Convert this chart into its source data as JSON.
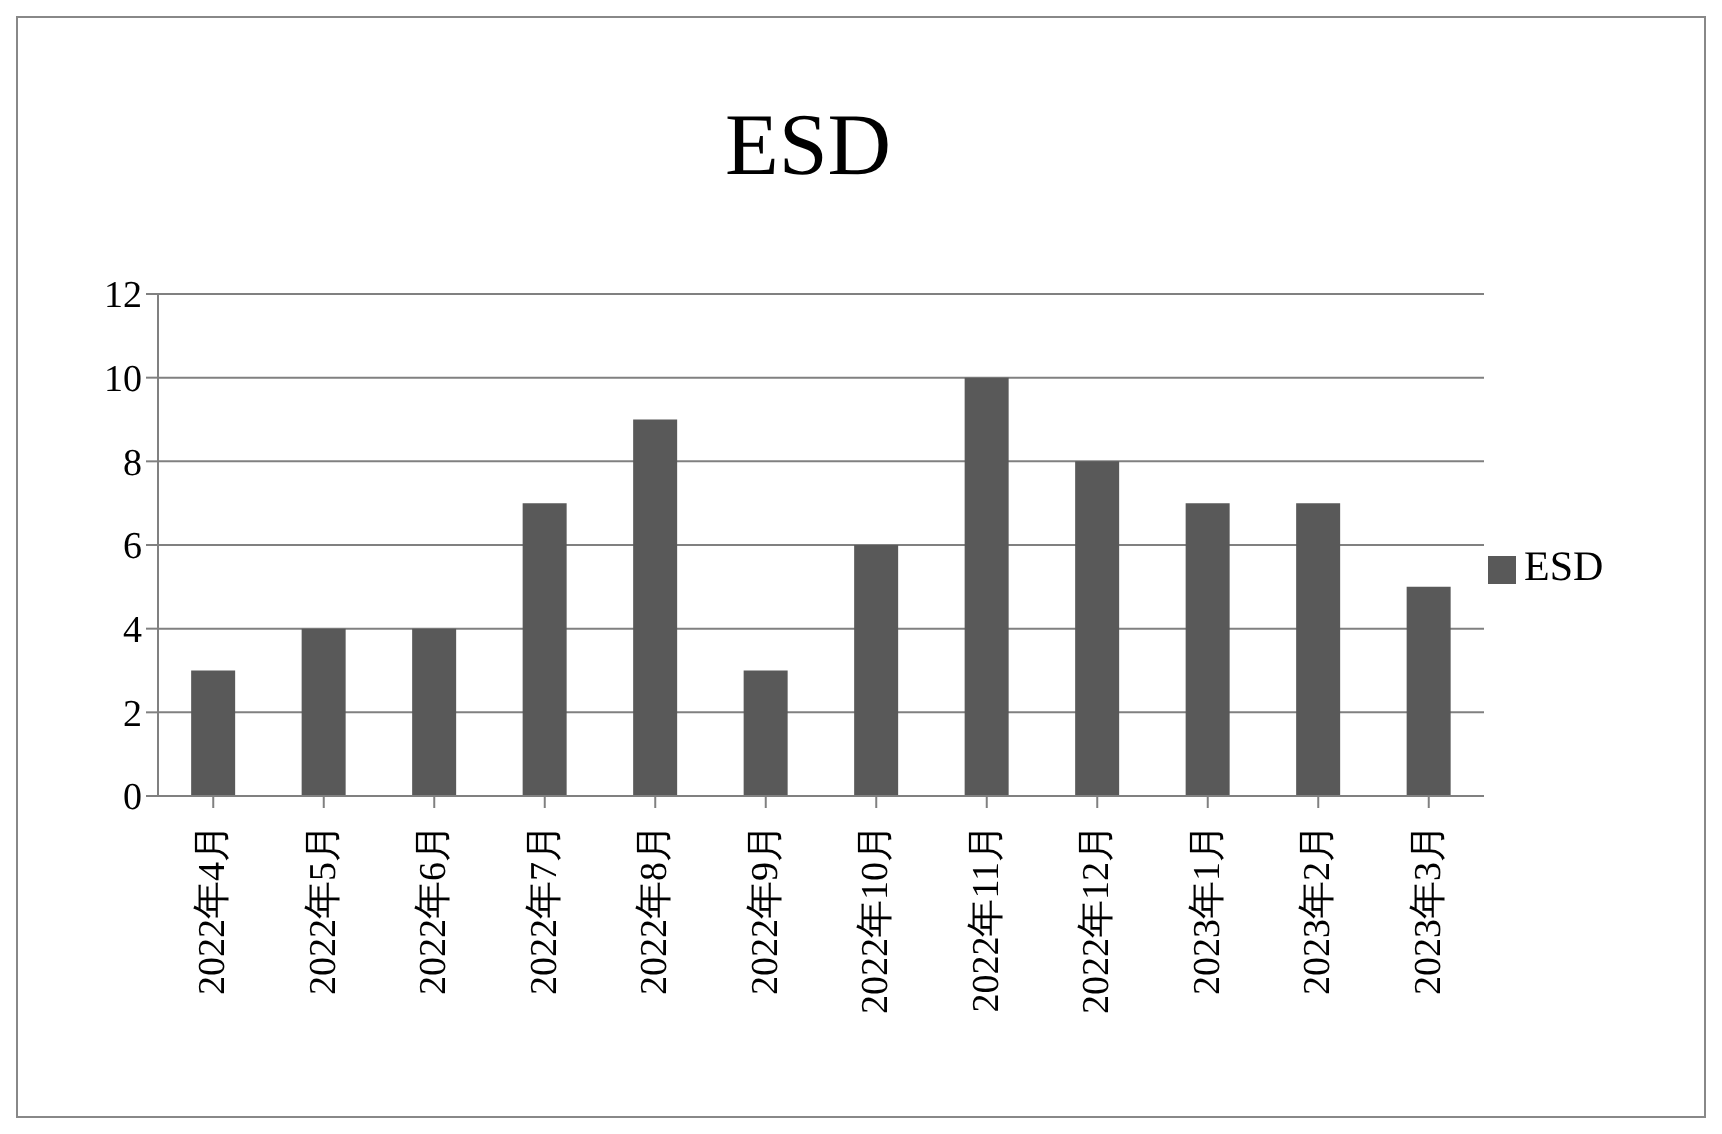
{
  "chart_data": {
    "type": "bar",
    "title": "ESD",
    "categories": [
      "2022年4月",
      "2022年5月",
      "2022年6月",
      "2022年7月",
      "2022年8月",
      "2022年9月",
      "2022年10月",
      "2022年11月",
      "2022年12月",
      "2023年1月",
      "2023年2月",
      "2023年3月"
    ],
    "series": [
      {
        "name": "ESD",
        "color": "#595959",
        "values": [
          3,
          4,
          4,
          7,
          9,
          3,
          6,
          10,
          8,
          7,
          7,
          5
        ]
      }
    ],
    "ylim": [
      0,
      12
    ],
    "yticks": [
      0,
      2,
      4,
      6,
      8,
      10,
      12
    ],
    "grid": "y",
    "legend": "right"
  }
}
